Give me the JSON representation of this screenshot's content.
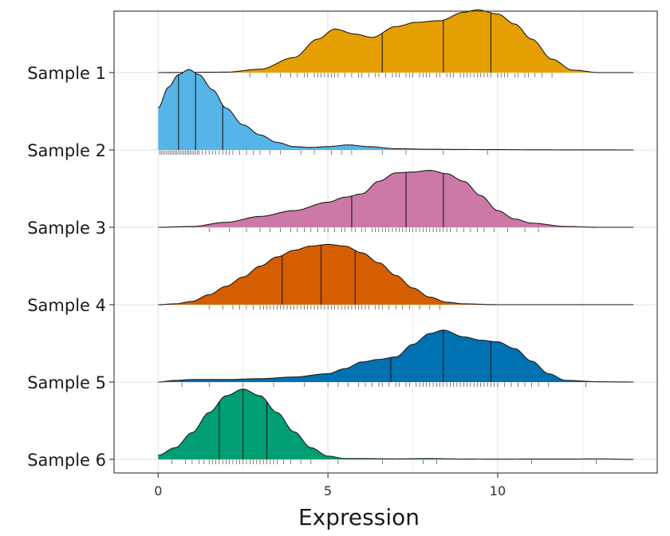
{
  "chart_data": {
    "type": "area",
    "subtype": "ridgeline-density",
    "title": "",
    "xlabel": "Expression",
    "ylabel": "",
    "xlim": [
      -1.3,
      14.7
    ],
    "xticks": [
      0,
      5,
      10
    ],
    "xtick_labels": [
      "0",
      "5",
      "10"
    ],
    "grid": true,
    "legend": "none",
    "quantile_lines": true,
    "rug": true,
    "categories": [
      "Sample 1",
      "Sample 2",
      "Sample 3",
      "Sample 4",
      "Sample 5",
      "Sample 6"
    ],
    "series": [
      {
        "name": "Sample 1",
        "color": "#E69F00",
        "density": [
          [
            0,
            0
          ],
          [
            2,
            0.005
          ],
          [
            3,
            0.04
          ],
          [
            4,
            0.18
          ],
          [
            4.7,
            0.4
          ],
          [
            5.2,
            0.52
          ],
          [
            5.8,
            0.46
          ],
          [
            6.3,
            0.42
          ],
          [
            7,
            0.55
          ],
          [
            7.6,
            0.6
          ],
          [
            8.3,
            0.62
          ],
          [
            9,
            0.72
          ],
          [
            9.4,
            0.75
          ],
          [
            10,
            0.7
          ],
          [
            10.5,
            0.58
          ],
          [
            11,
            0.4
          ],
          [
            11.6,
            0.16
          ],
          [
            12.2,
            0.03
          ],
          [
            13,
            0
          ],
          [
            14,
            0
          ]
        ],
        "quantiles": [
          6.6,
          8.4,
          9.8
        ],
        "rug": [
          2.7,
          3.2,
          3.6,
          3.9,
          4.1,
          4.3,
          4.4,
          4.6,
          4.7,
          4.8,
          4.9,
          5.0,
          5.1,
          5.2,
          5.3,
          5.5,
          5.7,
          5.9,
          6.0,
          6.2,
          6.4,
          6.5,
          6.7,
          6.9,
          7.0,
          7.1,
          7.3,
          7.4,
          7.5,
          7.7,
          7.8,
          7.9,
          8.0,
          8.2,
          8.3,
          8.5,
          8.6,
          8.7,
          8.9,
          9.0,
          9.1,
          9.2,
          9.3,
          9.4,
          9.5,
          9.6,
          9.7,
          9.8,
          10.0,
          10.1,
          10.2,
          10.3,
          10.5,
          10.6,
          10.8,
          10.9,
          11.1,
          11.3,
          11.6
        ]
      },
      {
        "name": "Sample 2",
        "color": "#56B4E9",
        "density": [
          [
            0,
            0.5
          ],
          [
            0.3,
            0.75
          ],
          [
            0.6,
            0.9
          ],
          [
            0.9,
            0.96
          ],
          [
            1.2,
            0.9
          ],
          [
            1.6,
            0.72
          ],
          [
            2,
            0.5
          ],
          [
            2.5,
            0.3
          ],
          [
            3,
            0.18
          ],
          [
            3.5,
            0.09
          ],
          [
            4,
            0.04
          ],
          [
            4.5,
            0.03
          ],
          [
            5,
            0.04
          ],
          [
            5.6,
            0.06
          ],
          [
            6.2,
            0.04
          ],
          [
            7,
            0.015
          ],
          [
            8,
            0.008
          ],
          [
            9,
            0.005
          ],
          [
            10,
            0.004
          ],
          [
            11,
            0.002
          ],
          [
            12,
            0.001
          ],
          [
            14,
            0
          ]
        ],
        "quantiles": [
          0.6,
          1.1,
          1.9
        ],
        "rug": [
          0.05,
          0.1,
          0.15,
          0.2,
          0.25,
          0.3,
          0.35,
          0.4,
          0.45,
          0.5,
          0.55,
          0.6,
          0.65,
          0.7,
          0.75,
          0.8,
          0.85,
          0.9,
          0.95,
          1.0,
          1.05,
          1.1,
          1.15,
          1.2,
          1.3,
          1.4,
          1.5,
          1.6,
          1.7,
          1.8,
          1.9,
          2.0,
          2.1,
          2.2,
          2.4,
          2.6,
          2.8,
          3.0,
          3.3,
          3.6,
          4.2,
          4.6,
          5.1,
          5.4,
          5.7,
          6.6,
          7.3,
          8.4,
          9.7
        ]
      },
      {
        "name": "Sample 3",
        "color": "#CC79A7",
        "density": [
          [
            0,
            0
          ],
          [
            1,
            0.01
          ],
          [
            2,
            0.06
          ],
          [
            3,
            0.13
          ],
          [
            4,
            0.2
          ],
          [
            5,
            0.3
          ],
          [
            5.5,
            0.36
          ],
          [
            6,
            0.4
          ],
          [
            6.5,
            0.55
          ],
          [
            7,
            0.65
          ],
          [
            7.5,
            0.66
          ],
          [
            8,
            0.68
          ],
          [
            8.5,
            0.64
          ],
          [
            9,
            0.55
          ],
          [
            9.5,
            0.38
          ],
          [
            10,
            0.2
          ],
          [
            10.5,
            0.1
          ],
          [
            11,
            0.05
          ],
          [
            12,
            0.01
          ],
          [
            13,
            0
          ],
          [
            14,
            0
          ]
        ],
        "quantiles": [
          5.7,
          7.3,
          8.4
        ],
        "rug": [
          1.5,
          2.1,
          2.6,
          3.0,
          3.3,
          3.6,
          3.9,
          4.1,
          4.3,
          4.5,
          4.7,
          4.9,
          5.0,
          5.2,
          5.4,
          5.5,
          5.7,
          5.8,
          6.0,
          6.1,
          6.3,
          6.4,
          6.5,
          6.6,
          6.7,
          6.8,
          6.9,
          7.0,
          7.1,
          7.2,
          7.3,
          7.4,
          7.5,
          7.6,
          7.7,
          7.8,
          7.9,
          8.0,
          8.1,
          8.2,
          8.3,
          8.4,
          8.5,
          8.6,
          8.8,
          9.0,
          9.2,
          9.4,
          9.6,
          9.9,
          10.3,
          10.8,
          11.2
        ]
      },
      {
        "name": "Sample 4",
        "color": "#D55E00",
        "density": [
          [
            0,
            0
          ],
          [
            0.5,
            0.01
          ],
          [
            1,
            0.04
          ],
          [
            1.5,
            0.12
          ],
          [
            2,
            0.22
          ],
          [
            2.5,
            0.33
          ],
          [
            3,
            0.46
          ],
          [
            3.5,
            0.57
          ],
          [
            4,
            0.65
          ],
          [
            4.5,
            0.7
          ],
          [
            5,
            0.72
          ],
          [
            5.5,
            0.7
          ],
          [
            6,
            0.62
          ],
          [
            6.5,
            0.5
          ],
          [
            7,
            0.35
          ],
          [
            7.5,
            0.2
          ],
          [
            8,
            0.09
          ],
          [
            8.5,
            0.03
          ],
          [
            9,
            0.01
          ],
          [
            10,
            0
          ],
          [
            14,
            0
          ]
        ],
        "quantiles": [
          3.65,
          4.8,
          5.8
        ],
        "rug": [
          1.5,
          1.9,
          2.2,
          2.4,
          2.6,
          2.8,
          3.0,
          3.1,
          3.2,
          3.3,
          3.4,
          3.5,
          3.6,
          3.7,
          3.8,
          3.9,
          4.0,
          4.1,
          4.2,
          4.3,
          4.4,
          4.5,
          4.6,
          4.7,
          4.8,
          4.9,
          5.0,
          5.1,
          5.2,
          5.3,
          5.4,
          5.5,
          5.6,
          5.7,
          5.8,
          5.9,
          6.0,
          6.1,
          6.2,
          6.4,
          6.5,
          6.6,
          6.8,
          7.0,
          7.2,
          7.4,
          7.7,
          8.0,
          8.3
        ]
      },
      {
        "name": "Sample 5",
        "color": "#0072B2",
        "density": [
          [
            0,
            0
          ],
          [
            0.5,
            0.02
          ],
          [
            1,
            0.03
          ],
          [
            2,
            0.03
          ],
          [
            3,
            0.04
          ],
          [
            4,
            0.06
          ],
          [
            5,
            0.1
          ],
          [
            5.5,
            0.16
          ],
          [
            6,
            0.24
          ],
          [
            6.5,
            0.27
          ],
          [
            7,
            0.3
          ],
          [
            7.5,
            0.45
          ],
          [
            8,
            0.58
          ],
          [
            8.4,
            0.62
          ],
          [
            9,
            0.54
          ],
          [
            9.5,
            0.5
          ],
          [
            10,
            0.48
          ],
          [
            10.5,
            0.4
          ],
          [
            11,
            0.25
          ],
          [
            11.5,
            0.1
          ],
          [
            12,
            0.02
          ],
          [
            13,
            0.003
          ],
          [
            14,
            0
          ]
        ],
        "quantiles": [
          6.85,
          8.4,
          9.8
        ],
        "rug": [
          0.7,
          1.5,
          2.5,
          3.4,
          4.3,
          5.0,
          5.3,
          5.6,
          5.9,
          6.1,
          6.3,
          6.5,
          6.6,
          6.8,
          7.0,
          7.1,
          7.3,
          7.4,
          7.6,
          7.7,
          7.8,
          7.9,
          8.0,
          8.1,
          8.2,
          8.3,
          8.4,
          8.5,
          8.6,
          8.7,
          8.8,
          8.9,
          9.0,
          9.1,
          9.2,
          9.3,
          9.4,
          9.5,
          9.6,
          9.7,
          9.8,
          9.9,
          10.0,
          10.2,
          10.4,
          10.6,
          10.8,
          11.0,
          11.2,
          11.5,
          12.6
        ]
      },
      {
        "name": "Sample 6",
        "color": "#009E73",
        "density": [
          [
            0,
            0.05
          ],
          [
            0.5,
            0.14
          ],
          [
            1,
            0.32
          ],
          [
            1.5,
            0.56
          ],
          [
            2,
            0.76
          ],
          [
            2.5,
            0.84
          ],
          [
            3,
            0.76
          ],
          [
            3.5,
            0.56
          ],
          [
            4,
            0.33
          ],
          [
            4.5,
            0.14
          ],
          [
            5,
            0.04
          ],
          [
            5.5,
            0.01
          ],
          [
            6,
            0.01
          ],
          [
            7,
            0.006
          ],
          [
            8,
            0.01
          ],
          [
            9,
            0.004
          ],
          [
            10,
            0.003
          ],
          [
            11,
            0.004
          ],
          [
            12,
            0.004
          ],
          [
            13,
            0.006
          ],
          [
            14,
            0
          ]
        ],
        "quantiles": [
          1.8,
          2.5,
          3.2
        ],
        "rug": [
          0.4,
          0.8,
          1.0,
          1.2,
          1.35,
          1.5,
          1.6,
          1.7,
          1.8,
          1.9,
          2.0,
          2.1,
          2.2,
          2.3,
          2.4,
          2.5,
          2.6,
          2.7,
          2.8,
          2.9,
          3.0,
          3.1,
          3.2,
          3.3,
          3.4,
          3.5,
          3.7,
          3.9,
          4.2,
          4.5,
          5.3,
          6.6,
          7.8,
          8.2,
          11.0,
          12.9
        ]
      }
    ]
  }
}
